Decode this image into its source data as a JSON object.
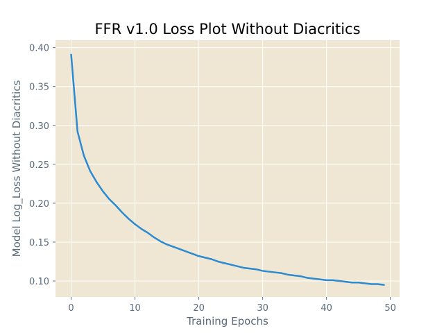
{
  "chart_data": {
    "type": "line",
    "title": "FFR v1.0 Loss Plot Without Diacritics",
    "xlabel": "Training Epochs",
    "ylabel": "Model Log_Loss Without Diacritics",
    "xlim": [
      -2.45,
      51.45
    ],
    "ylim": [
      0.0795,
      0.4095
    ],
    "xticks": [
      0,
      10,
      20,
      30,
      40,
      50
    ],
    "yticks": [
      0.1,
      0.15,
      0.2,
      0.25,
      0.3,
      0.35,
      0.4
    ],
    "xtick_labels": [
      "0",
      "10",
      "20",
      "30",
      "40",
      "50"
    ],
    "ytick_labels": [
      "0.10",
      "0.15",
      "0.20",
      "0.25",
      "0.30",
      "0.35",
      "0.40"
    ],
    "grid": true,
    "legend": "none",
    "colors": {
      "background": "#efe6d4",
      "grid": "#ffffff",
      "line": "#2b8ad0",
      "text": "#5a6a7a"
    },
    "series": [
      {
        "x": [
          0,
          1,
          2,
          3,
          4,
          5,
          6,
          7,
          8,
          9,
          10,
          11,
          12,
          13,
          14,
          15,
          16,
          17,
          18,
          19,
          20,
          21,
          22,
          23,
          24,
          25,
          26,
          27,
          28,
          29,
          30,
          31,
          32,
          33,
          34,
          35,
          36,
          37,
          38,
          39,
          40,
          41,
          42,
          43,
          44,
          45,
          46,
          47,
          48,
          49
        ],
        "values": [
          0.391,
          0.292,
          0.261,
          0.241,
          0.227,
          0.215,
          0.205,
          0.197,
          0.188,
          0.18,
          0.173,
          0.167,
          0.162,
          0.156,
          0.151,
          0.147,
          0.144,
          0.141,
          0.138,
          0.135,
          0.132,
          0.13,
          0.128,
          0.125,
          0.123,
          0.121,
          0.119,
          0.117,
          0.116,
          0.115,
          0.113,
          0.112,
          0.111,
          0.11,
          0.108,
          0.107,
          0.106,
          0.104,
          0.103,
          0.102,
          0.101,
          0.101,
          0.1,
          0.099,
          0.098,
          0.098,
          0.097,
          0.096,
          0.096,
          0.095
        ]
      }
    ]
  }
}
